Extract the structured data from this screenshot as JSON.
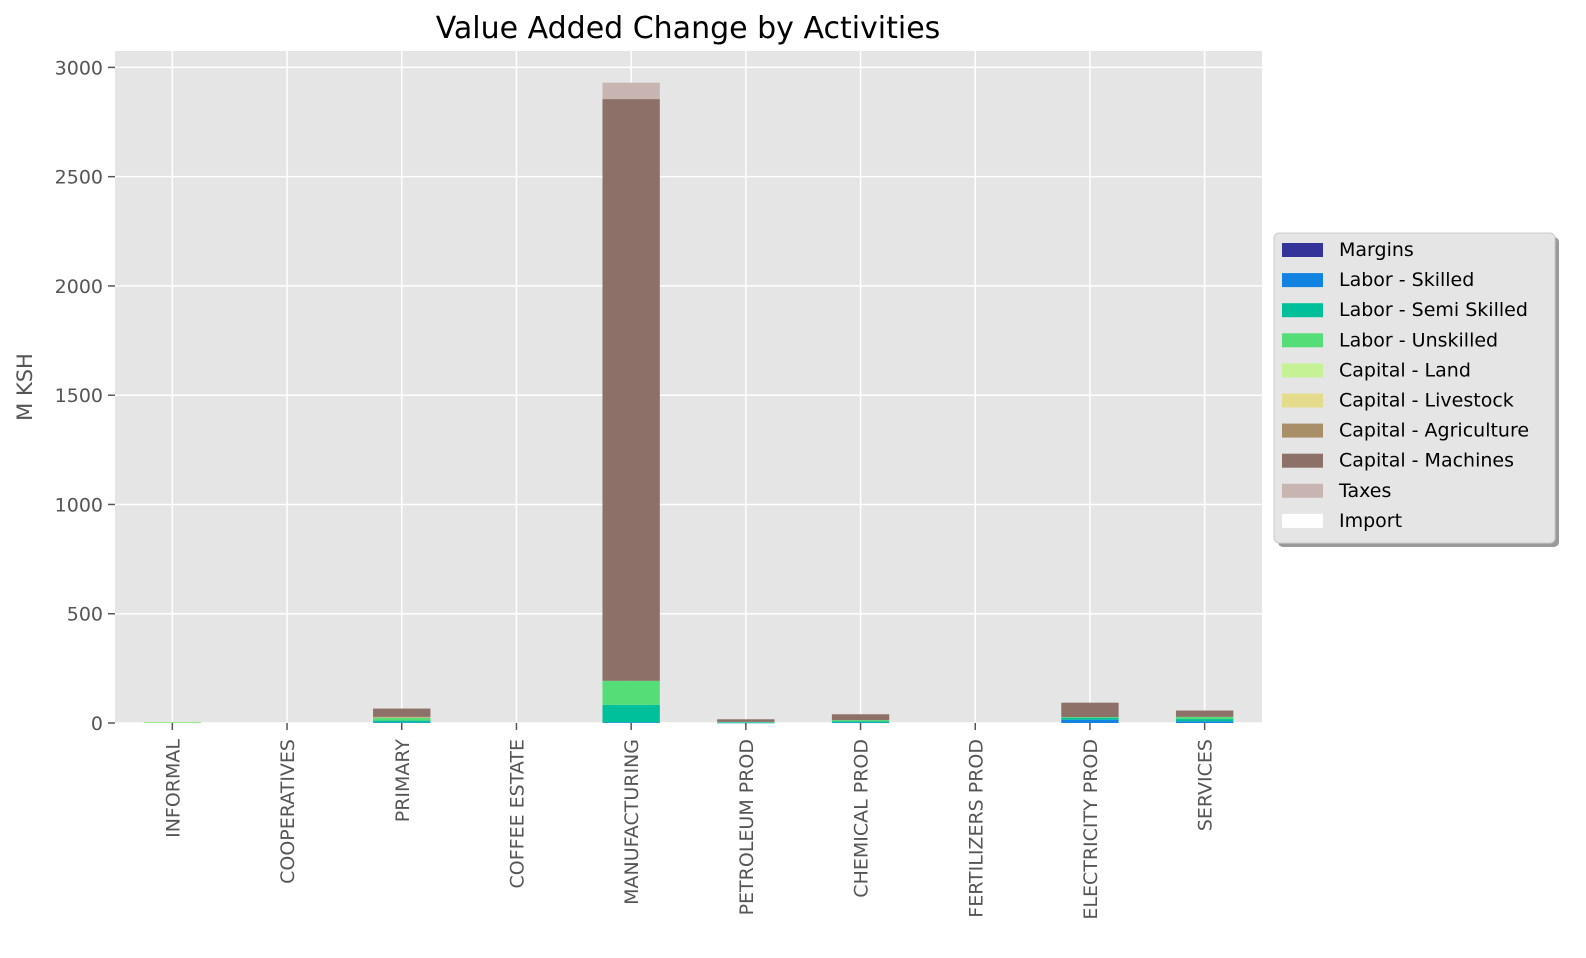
{
  "chart_data": {
    "type": "bar",
    "stacked": true,
    "title": "Value Added Change by Activities",
    "xlabel": "",
    "ylabel": "M KSH",
    "ylim": [
      0,
      3075
    ],
    "yticks": [
      0,
      500,
      1000,
      1500,
      2000,
      2500,
      3000
    ],
    "grid": true,
    "legend_position": "right",
    "categories": [
      "INFORMAL",
      "COOPERATIVES",
      "PRIMARY",
      "COFFEE ESTATE",
      "MANUFACTURING",
      "PETROLEUM PROD",
      "CHEMICAL PROD",
      "FERTILIZERS PROD",
      "ELECTRICITY PROD",
      "SERVICES"
    ],
    "series": [
      {
        "name": "Margins",
        "color": "#333399",
        "values": [
          0,
          0,
          0,
          0,
          0,
          0,
          0,
          0,
          0,
          0
        ]
      },
      {
        "name": "Labor - Skilled",
        "color": "#1283e0",
        "values": [
          0,
          0,
          3,
          0,
          3,
          1,
          2,
          0,
          15,
          8
        ]
      },
      {
        "name": "Labor - Semi Skilled",
        "color": "#00c09a",
        "values": [
          0,
          0,
          8,
          0,
          80,
          2,
          5,
          0,
          8,
          10
        ]
      },
      {
        "name": "Labor - Unskilled",
        "color": "#55dd77",
        "values": [
          2,
          0,
          12,
          0,
          110,
          2,
          6,
          0,
          4,
          10
        ]
      },
      {
        "name": "Capital - Land",
        "color": "#c6f296",
        "values": [
          3,
          0,
          2,
          0,
          0,
          0,
          0,
          0,
          0,
          0
        ]
      },
      {
        "name": "Capital - Livestock",
        "color": "#e4db8d",
        "values": [
          0,
          0,
          0,
          0,
          0,
          0,
          0,
          0,
          0,
          0
        ]
      },
      {
        "name": "Capital - Agriculture",
        "color": "#a98f67",
        "values": [
          0,
          0,
          3,
          0,
          0,
          0,
          0,
          0,
          0,
          0
        ]
      },
      {
        "name": "Capital - Machines",
        "color": "#8d7067",
        "values": [
          0,
          0,
          38,
          0,
          2662,
          12,
          27,
          0,
          66,
          29
        ]
      },
      {
        "name": "Taxes",
        "color": "#c8b5b1",
        "values": [
          0,
          0,
          0,
          0,
          75,
          0,
          0,
          0,
          0,
          0
        ]
      },
      {
        "name": "Import",
        "color": "#ffffff",
        "values": [
          0,
          0,
          0,
          0,
          0,
          0,
          0,
          0,
          0,
          0
        ]
      }
    ]
  }
}
